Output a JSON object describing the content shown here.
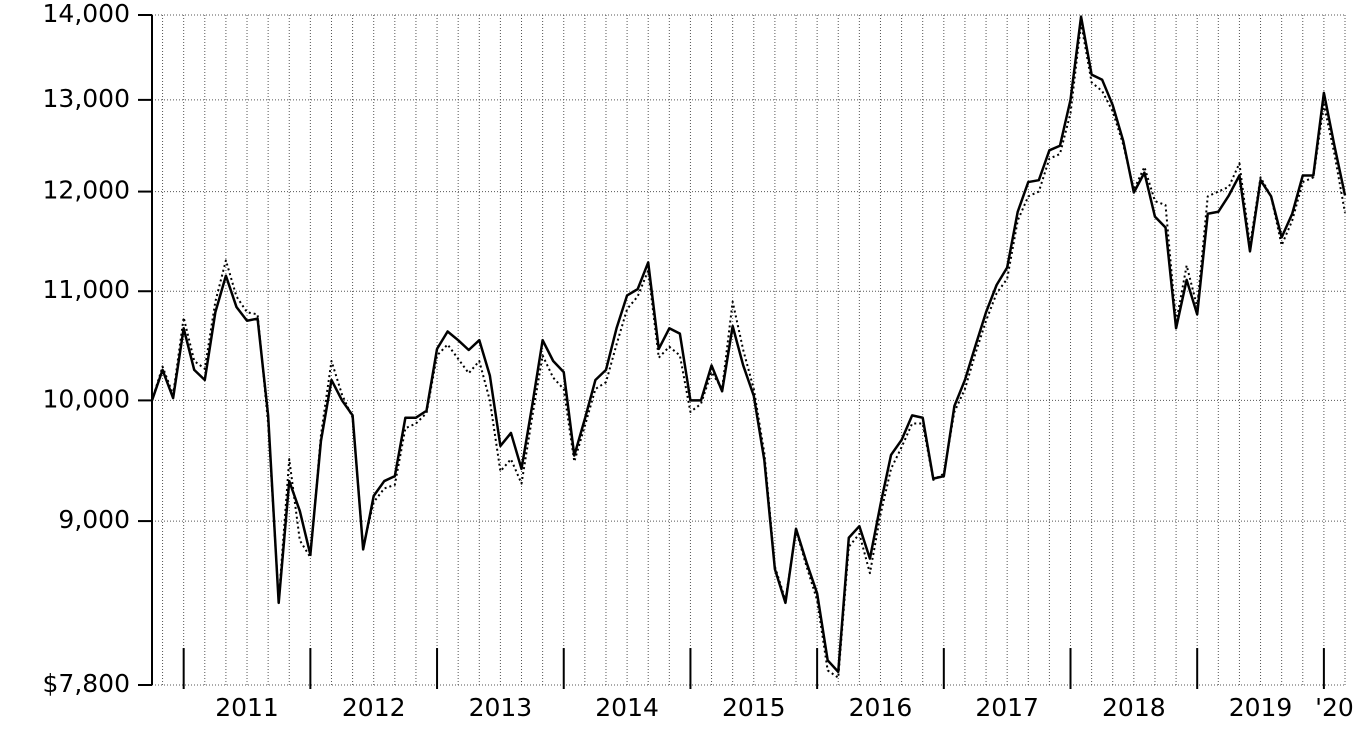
{
  "chart_data": {
    "type": "line",
    "log_y": true,
    "grid": true,
    "ylim": [
      7800,
      14000
    ],
    "yticks": [
      {
        "value": 7800,
        "label": "$7,800"
      },
      {
        "value": 9000,
        "label": "9,000"
      },
      {
        "value": 10000,
        "label": "10,000"
      },
      {
        "value": 11000,
        "label": "11,000"
      },
      {
        "value": 12000,
        "label": "12,000"
      },
      {
        "value": 13000,
        "label": "13,000"
      },
      {
        "value": 14000,
        "label": "14,000"
      }
    ],
    "categories": [
      null,
      null,
      null,
      null,
      null,
      null,
      null,
      null,
      null,
      "2011",
      null,
      null,
      null,
      null,
      null,
      null,
      null,
      null,
      null,
      null,
      null,
      "2012",
      null,
      null,
      null,
      null,
      null,
      null,
      null,
      null,
      null,
      null,
      null,
      "2013",
      null,
      null,
      null,
      null,
      null,
      null,
      null,
      null,
      null,
      null,
      null,
      "2014",
      null,
      null,
      null,
      null,
      null,
      null,
      null,
      null,
      null,
      null,
      null,
      "2015",
      null,
      null,
      null,
      null,
      null,
      null,
      null,
      null,
      null,
      null,
      null,
      "2016",
      null,
      null,
      null,
      null,
      null,
      null,
      null,
      null,
      null,
      null,
      null,
      "2017",
      null,
      null,
      null,
      null,
      null,
      null,
      null,
      null,
      null,
      null,
      null,
      "2018",
      null,
      null,
      null,
      null,
      null,
      null,
      null,
      null,
      null,
      null,
      null,
      "2019",
      null,
      null,
      null,
      null,
      null,
      null,
      "'20",
      null
    ],
    "series": [
      {
        "color": "#000000",
        "dash": "solid",
        "values": [
          10000,
          10270,
          10020,
          10650,
          10270,
          10180,
          10800,
          11150,
          10850,
          10720,
          10740,
          9870,
          8380,
          9320,
          9080,
          8740,
          9650,
          10180,
          10000,
          9870,
          8780,
          9200,
          9320,
          9360,
          9850,
          9850,
          9910,
          10460,
          10620,
          10540,
          10450,
          10540,
          10220,
          9610,
          9720,
          9420,
          9950,
          10540,
          10350,
          10250,
          9530,
          9840,
          10180,
          10270,
          10650,
          10960,
          11020,
          11280,
          10460,
          10650,
          10600,
          10000,
          10000,
          10310,
          10080,
          10670,
          10310,
          10040,
          9490,
          8630,
          8380,
          8940,
          8680,
          8450,
          7970,
          7890,
          8870,
          8960,
          8710,
          9130,
          9535,
          9660,
          9870,
          9850,
          9340,
          9360,
          9950,
          10180,
          10490,
          10800,
          11060,
          11230,
          11790,
          12100,
          12120,
          12440,
          12490,
          13000,
          13980,
          13290,
          13230,
          12940,
          12540,
          11990,
          12200,
          11740,
          11630,
          10650,
          11110,
          10780,
          11770,
          11790,
          11960,
          12170,
          11390,
          12120,
          11950,
          11530,
          11770,
          12170,
          12170,
          13080,
          12490,
          11960
        ]
      },
      {
        "color": "#000000",
        "dash": "dotted",
        "values": [
          10000,
          10300,
          10050,
          10750,
          10350,
          10280,
          10900,
          11300,
          10950,
          10800,
          10780,
          9800,
          8400,
          9500,
          8850,
          8720,
          9700,
          10350,
          10050,
          9850,
          8800,
          9150,
          9260,
          9290,
          9760,
          9800,
          9890,
          10400,
          10500,
          10370,
          10240,
          10350,
          10000,
          9400,
          9500,
          9300,
          9850,
          10400,
          10200,
          10100,
          9480,
          9780,
          10100,
          10160,
          10500,
          10830,
          10950,
          11200,
          10380,
          10480,
          10400,
          9900,
          9970,
          10250,
          10100,
          10900,
          10450,
          10100,
          9550,
          8650,
          8400,
          8930,
          8650,
          8400,
          7900,
          7850,
          8800,
          8900,
          8600,
          9050,
          9420,
          9600,
          9800,
          9800,
          9330,
          9380,
          9900,
          10100,
          10420,
          10720,
          10980,
          11120,
          11700,
          11950,
          12000,
          12350,
          12400,
          12850,
          13900,
          13200,
          13100,
          12870,
          12500,
          12020,
          12260,
          11900,
          11860,
          10700,
          11250,
          10850,
          11950,
          12000,
          12050,
          12300,
          11450,
          12150,
          11950,
          11450,
          11700,
          12100,
          12150,
          12950,
          12400,
          11780
        ]
      }
    ]
  }
}
